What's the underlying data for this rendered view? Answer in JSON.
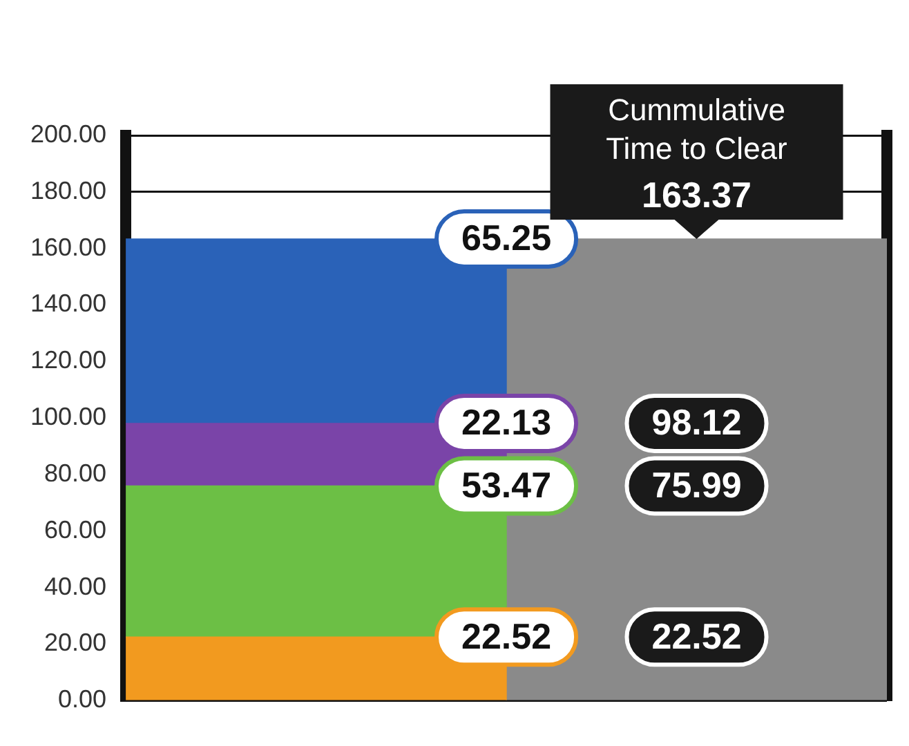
{
  "chart_data": {
    "type": "bar",
    "stacked": true,
    "categories": [
      null,
      null
    ],
    "series": [
      {
        "color": "#f29a1f",
        "values": [
          22.52,
          null
        ],
        "value_labels": [
          "22.52",
          null
        ]
      },
      {
        "color": "#6cbf45",
        "values": [
          53.47,
          null
        ],
        "value_labels": [
          "53.47",
          null
        ]
      },
      {
        "color": "#7a44a8",
        "values": [
          22.13,
          null
        ],
        "value_labels": [
          "22.13",
          null
        ]
      },
      {
        "color": "#2a62b8",
        "values": [
          65.25,
          null
        ],
        "value_labels": [
          "65.25",
          null
        ]
      },
      {
        "color": "#8a8a8a",
        "values": [
          null,
          163.37
        ]
      }
    ],
    "ylim": [
      0,
      200
    ],
    "yticks": [
      {
        "value": 0,
        "label": "0.00"
      },
      {
        "value": 20,
        "label": "20.00"
      },
      {
        "value": 40,
        "label": "40.00"
      },
      {
        "value": 60,
        "label": "60.00"
      },
      {
        "value": 80,
        "label": "80.00"
      },
      {
        "value": 100,
        "label": "100.00"
      },
      {
        "value": 120,
        "label": "120.00"
      },
      {
        "value": 140,
        "label": "140.00"
      },
      {
        "value": 160,
        "label": "160.00"
      },
      {
        "value": 180,
        "label": "180.00"
      },
      {
        "value": 200,
        "label": "200.00"
      }
    ],
    "grid": "y",
    "tick_labels": "y",
    "annotations": [
      {
        "text": "Cummulative\nTime to Clear\n163.37",
        "y": 163.37
      },
      "98.12",
      "75.99",
      "22.52"
    ]
  }
}
